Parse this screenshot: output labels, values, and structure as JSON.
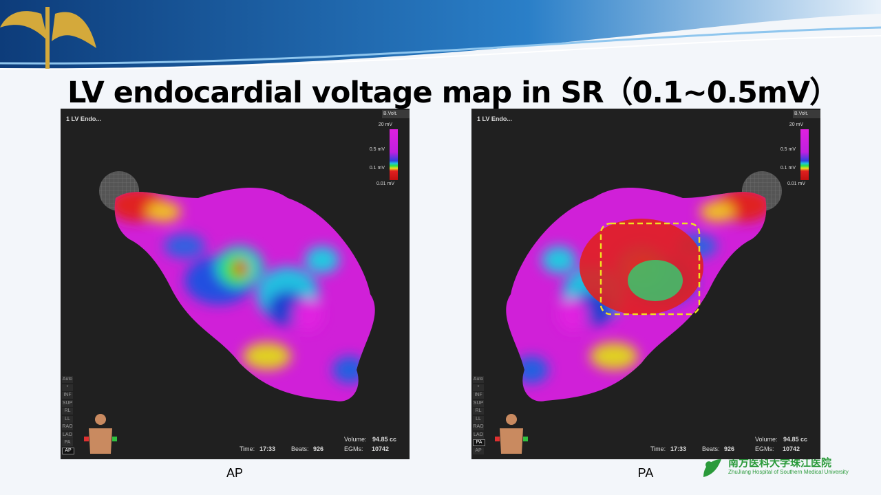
{
  "header": {
    "title": "LV endocardial voltage map in SR（0.1~0.5mV）"
  },
  "panels": [
    {
      "caption": "AP",
      "map_label": "1 LV Endo...",
      "map_type": "B.Volt.",
      "scale_labels": [
        "20 mV",
        "0.5 mV",
        "0.1 mV",
        "0.01 mV"
      ],
      "view_buttons": [
        "Auto",
        "*",
        "INF",
        "SUP",
        "RL",
        "LL",
        "RAO",
        "LAO",
        "PA",
        "AP"
      ],
      "active_view": "AP",
      "stats": {
        "volume_label": "Volume:",
        "volume": "94.85 cc",
        "time_label": "Time:",
        "time": "17:33",
        "beats_label": "Beats:",
        "beats": "926",
        "egms_label": "EGMs:",
        "egms": "10742"
      }
    },
    {
      "caption": "PA",
      "map_label": "1 LV Endo...",
      "map_type": "B.Volt.",
      "scale_labels": [
        "20 mV",
        "0.5 mV",
        "0.1 mV",
        "0.01 mV"
      ],
      "view_buttons": [
        "Auto",
        "*",
        "INF",
        "SUP",
        "RL",
        "LL",
        "RAO",
        "LAO",
        "PA",
        "AP"
      ],
      "active_view": "PA",
      "stats": {
        "volume_label": "Volume:",
        "volume": "94.85 cc",
        "time_label": "Time:",
        "time": "17:33",
        "beats_label": "Beats:",
        "beats": "926",
        "egms_label": "EGMs:",
        "egms": "10742"
      }
    }
  ],
  "logo": {
    "name_cn": "南方医科大学珠江医院",
    "name_en": "ZhuJiang Hospital of Southern Medical University"
  }
}
